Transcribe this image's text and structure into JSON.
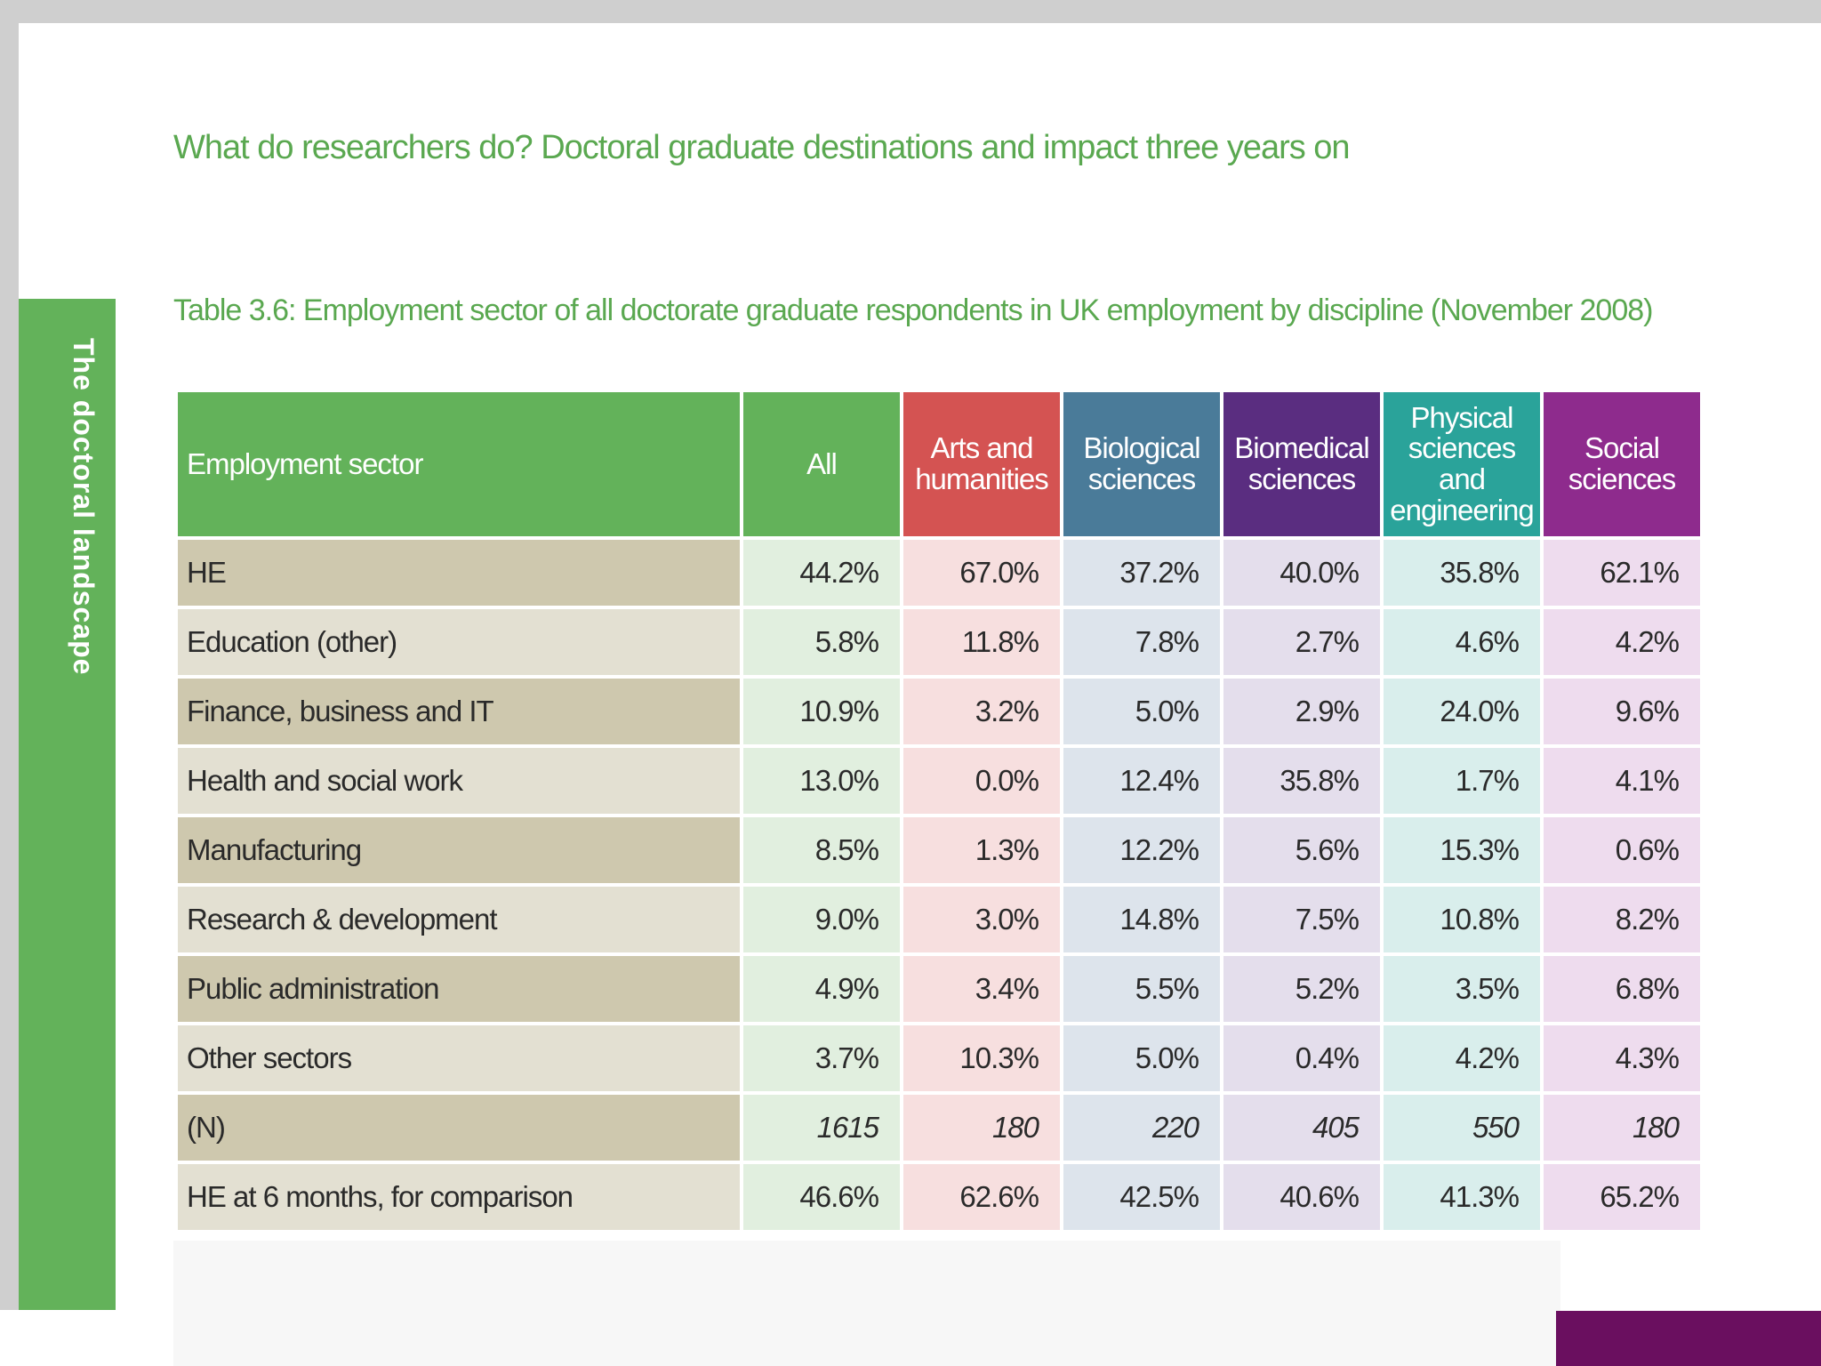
{
  "page": {
    "title": "What do researchers do? Doctoral graduate destinations and impact three years on",
    "side_tab": "The doctoral landscape"
  },
  "table": {
    "caption": "Table 3.6: Employment sector of all doctorate graduate respondents in UK employment by discipline (November 2008)",
    "headers": {
      "sector": "Employment sector",
      "all": "All",
      "arts": "Arts and humanities",
      "bio": "Biological sciences",
      "biomed": "Biomedical sciences",
      "phys": "Physical sciences and engineering",
      "soc": "Social sciences"
    },
    "rows": [
      {
        "label": "HE",
        "values": [
          "44.2%",
          "67.0%",
          "37.2%",
          "40.0%",
          "35.8%",
          "62.1%"
        ]
      },
      {
        "label": "Education (other)",
        "values": [
          "5.8%",
          "11.8%",
          "7.8%",
          "2.7%",
          "4.6%",
          "4.2%"
        ]
      },
      {
        "label": "Finance, business and IT",
        "values": [
          "10.9%",
          "3.2%",
          "5.0%",
          "2.9%",
          "24.0%",
          "9.6%"
        ]
      },
      {
        "label": "Health and social work",
        "values": [
          "13.0%",
          "0.0%",
          "12.4%",
          "35.8%",
          "1.7%",
          "4.1%"
        ]
      },
      {
        "label": "Manufacturing",
        "values": [
          "8.5%",
          "1.3%",
          "12.2%",
          "5.6%",
          "15.3%",
          "0.6%"
        ]
      },
      {
        "label": "Research & development",
        "values": [
          "9.0%",
          "3.0%",
          "14.8%",
          "7.5%",
          "10.8%",
          "8.2%"
        ]
      },
      {
        "label": "Public administration",
        "values": [
          "4.9%",
          "3.4%",
          "5.5%",
          "5.2%",
          "3.5%",
          "6.8%"
        ]
      },
      {
        "label": "Other sectors",
        "values": [
          "3.7%",
          "10.3%",
          "5.0%",
          "0.4%",
          "4.2%",
          "4.3%"
        ]
      },
      {
        "label": "(N)",
        "values": [
          "1615",
          "180",
          "220",
          "405",
          "550",
          "180"
        ]
      },
      {
        "label": "HE at 6 months, for comparison",
        "values": [
          "46.6%",
          "62.6%",
          "42.5%",
          "40.6%",
          "41.3%",
          "65.2%"
        ]
      }
    ]
  },
  "colors": {
    "green": "#63b25a",
    "arts": "#d45352",
    "bio": "#4a7b99",
    "biomed": "#5a2d80",
    "phys": "#2aa39a",
    "soc": "#8e2b8d"
  }
}
